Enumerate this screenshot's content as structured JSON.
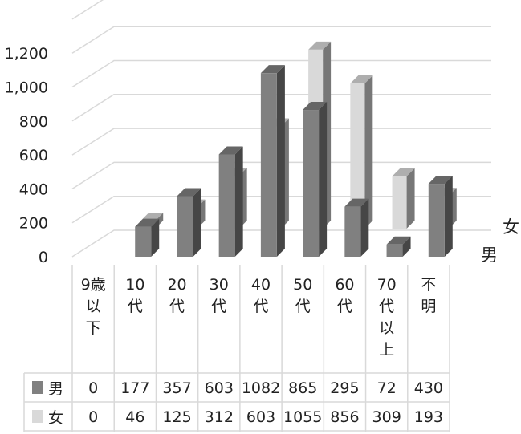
{
  "chart_data": {
    "type": "bar",
    "subtype": "3d-clustered-column-with-data-table",
    "categories": [
      [
        "9歳",
        "以",
        "下"
      ],
      [
        "10",
        "代"
      ],
      [
        "20",
        "代"
      ],
      [
        "30",
        "代"
      ],
      [
        "40",
        "代"
      ],
      [
        "50",
        "代"
      ],
      [
        "60",
        "代"
      ],
      [
        "70",
        "代",
        "以",
        "上"
      ],
      [
        "不",
        "明"
      ]
    ],
    "series": [
      {
        "name": "男",
        "color": "#808080",
        "values": [
          0,
          177,
          357,
          603,
          1082,
          865,
          295,
          72,
          430
        ]
      },
      {
        "name": "女",
        "color": "#d9d9d9",
        "values": [
          0,
          46,
          125,
          312,
          603,
          1055,
          856,
          309,
          193
        ]
      }
    ],
    "y_ticks": [
      "0",
      "200",
      "400",
      "600",
      "800",
      "1,000",
      "1,200"
    ],
    "ylim": [
      0,
      1400
    ],
    "depth_labels": [
      "女",
      "男"
    ],
    "grid": true,
    "data_table": true
  }
}
